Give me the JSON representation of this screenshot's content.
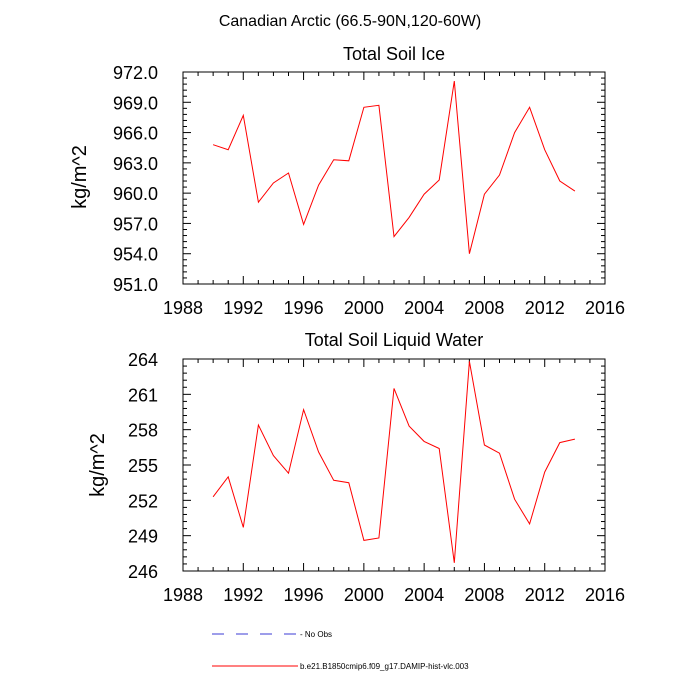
{
  "figure_title": "Canadian Arctic (66.5-90N,120-60W)",
  "legend": {
    "items": [
      {
        "label": "No Obs",
        "color": "#3b3bd6",
        "style": "dashed"
      },
      {
        "label": "b.e21.B1850cmip6.f09_g17.DAMIP-hist-vlc.003",
        "color": "#ff0000",
        "style": "solid"
      }
    ]
  },
  "chart_data": [
    {
      "type": "line",
      "title": "Total Soil Ice",
      "xlabel": "",
      "ylabel": "kg/m^2",
      "xlim": [
        1988,
        2016
      ],
      "ylim": [
        951.0,
        972.0
      ],
      "xticks": [
        1988,
        1992,
        1996,
        2000,
        2004,
        2008,
        2012,
        2016
      ],
      "yticks": [
        951.0,
        954.0,
        957.0,
        960.0,
        963.0,
        966.0,
        969.0,
        972.0
      ],
      "ytick_labels": [
        "951.0",
        "954.0",
        "957.0",
        "960.0",
        "963.0",
        "966.0",
        "969.0",
        "972.0"
      ],
      "series": [
        {
          "name": "b.e21.B1850cmip6.f09_g17.DAMIP-hist-vlc.003",
          "color": "#ff0000",
          "x": [
            1990,
            1991,
            1992,
            1993,
            1994,
            1995,
            1996,
            1997,
            1998,
            1999,
            2000,
            2001,
            2002,
            2003,
            2004,
            2005,
            2006,
            2007,
            2008,
            2009,
            2010,
            2011,
            2012,
            2013,
            2014
          ],
          "values": [
            964.8,
            964.3,
            967.7,
            959.1,
            961.0,
            962.0,
            956.9,
            960.8,
            963.3,
            963.2,
            968.5,
            968.7,
            955.7,
            957.6,
            959.9,
            961.3,
            971.1,
            954.0,
            959.9,
            961.8,
            966.0,
            968.5,
            964.3,
            961.2,
            960.2
          ]
        }
      ]
    },
    {
      "type": "line",
      "title": "Total Soil Liquid Water",
      "xlabel": "",
      "ylabel": "kg/m^2",
      "xlim": [
        1988,
        2016
      ],
      "ylim": [
        246,
        264
      ],
      "xticks": [
        1988,
        1992,
        1996,
        2000,
        2004,
        2008,
        2012,
        2016
      ],
      "yticks": [
        246,
        249,
        252,
        255,
        258,
        261,
        264
      ],
      "ytick_labels": [
        "246",
        "249",
        "252",
        "255",
        "258",
        "261",
        "264"
      ],
      "series": [
        {
          "name": "b.e21.B1850cmip6.f09_g17.DAMIP-hist-vlc.003",
          "color": "#ff0000",
          "x": [
            1990,
            1991,
            1992,
            1993,
            1994,
            1995,
            1996,
            1997,
            1998,
            1999,
            2000,
            2001,
            2002,
            2003,
            2004,
            2005,
            2006,
            2007,
            2008,
            2009,
            2010,
            2011,
            2012,
            2013,
            2014
          ],
          "values": [
            252.3,
            254.0,
            249.7,
            258.4,
            255.8,
            254.3,
            259.7,
            256.1,
            253.7,
            253.5,
            248.6,
            248.8,
            261.5,
            258.3,
            257.0,
            256.4,
            246.7,
            263.8,
            256.7,
            256.0,
            252.1,
            250.0,
            254.4,
            256.9,
            257.2
          ]
        }
      ]
    }
  ]
}
